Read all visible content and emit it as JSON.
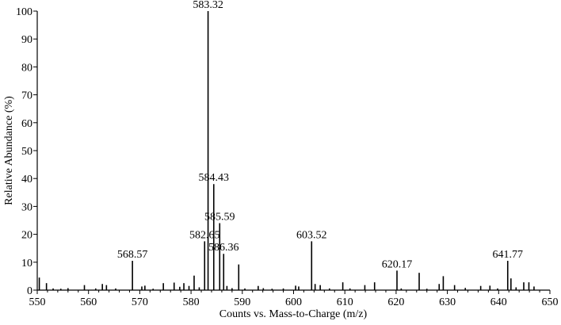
{
  "chart_data": {
    "type": "bar",
    "xlabel": "Counts vs. Mass-to-Charge (m/z)",
    "ylabel": "Relative  Abundance (%)",
    "xlim": [
      550,
      650
    ],
    "ylim": [
      0,
      100
    ],
    "x_ticks": [
      "550",
      "560",
      "570",
      "580",
      "590",
      "600",
      "610",
      "620",
      "630",
      "640",
      "650"
    ],
    "y_ticks": [
      "0",
      "10",
      "20",
      "30",
      "40",
      "50",
      "60",
      "70",
      "80",
      "90",
      "100"
    ],
    "peaks": [
      {
        "mz": 550.4,
        "value": 4.5
      },
      {
        "mz": 551.8,
        "value": 2.5
      },
      {
        "mz": 553.1,
        "value": 0.6
      },
      {
        "mz": 554.6,
        "value": 0.5
      },
      {
        "mz": 556.0,
        "value": 0.7
      },
      {
        "mz": 559.2,
        "value": 1.8
      },
      {
        "mz": 561.4,
        "value": 0.6
      },
      {
        "mz": 562.7,
        "value": 2.2
      },
      {
        "mz": 563.5,
        "value": 1.8
      },
      {
        "mz": 565.3,
        "value": 0.6
      },
      {
        "mz": 568.57,
        "value": 10.5,
        "label": "568.57"
      },
      {
        "mz": 570.4,
        "value": 1.3
      },
      {
        "mz": 571.0,
        "value": 1.6
      },
      {
        "mz": 572.6,
        "value": 0.5
      },
      {
        "mz": 574.6,
        "value": 2.5
      },
      {
        "mz": 576.7,
        "value": 2.7
      },
      {
        "mz": 577.8,
        "value": 1.2
      },
      {
        "mz": 578.6,
        "value": 2.5
      },
      {
        "mz": 579.6,
        "value": 1.5
      },
      {
        "mz": 580.6,
        "value": 5.2
      },
      {
        "mz": 581.6,
        "value": 1.0
      },
      {
        "mz": 582.65,
        "value": 17.5,
        "label": "582.65"
      },
      {
        "mz": 583.32,
        "value": 100,
        "label": "583.32"
      },
      {
        "mz": 584.43,
        "value": 38,
        "label": "584.43"
      },
      {
        "mz": 585.59,
        "value": 24,
        "label": "585.59"
      },
      {
        "mz": 586.36,
        "value": 13,
        "label": "586.36"
      },
      {
        "mz": 587.0,
        "value": 1.5
      },
      {
        "mz": 588.0,
        "value": 0.7
      },
      {
        "mz": 589.3,
        "value": 9.2
      },
      {
        "mz": 590.5,
        "value": 0.6
      },
      {
        "mz": 593.1,
        "value": 1.5
      },
      {
        "mz": 594.1,
        "value": 0.7
      },
      {
        "mz": 595.8,
        "value": 0.5
      },
      {
        "mz": 598.0,
        "value": 0.6
      },
      {
        "mz": 600.4,
        "value": 1.6
      },
      {
        "mz": 601.0,
        "value": 1.3
      },
      {
        "mz": 603.52,
        "value": 17.5,
        "label": "603.52"
      },
      {
        "mz": 604.2,
        "value": 2.2
      },
      {
        "mz": 605.2,
        "value": 1.8
      },
      {
        "mz": 607.0,
        "value": 0.6
      },
      {
        "mz": 609.6,
        "value": 2.8
      },
      {
        "mz": 611.0,
        "value": 0.6
      },
      {
        "mz": 613.9,
        "value": 1.8
      },
      {
        "mz": 615.8,
        "value": 2.8
      },
      {
        "mz": 620.17,
        "value": 7.0,
        "label": "620.17"
      },
      {
        "mz": 621.0,
        "value": 0.6
      },
      {
        "mz": 624.5,
        "value": 6.2
      },
      {
        "mz": 626.0,
        "value": 0.5
      },
      {
        "mz": 628.4,
        "value": 2.2
      },
      {
        "mz": 629.2,
        "value": 5.0
      },
      {
        "mz": 631.4,
        "value": 1.8
      },
      {
        "mz": 633.5,
        "value": 0.8
      },
      {
        "mz": 636.5,
        "value": 1.5
      },
      {
        "mz": 638.3,
        "value": 1.6
      },
      {
        "mz": 639.8,
        "value": 0.6
      },
      {
        "mz": 641.77,
        "value": 10.5,
        "label": "641.77"
      },
      {
        "mz": 642.4,
        "value": 4.2
      },
      {
        "mz": 643.4,
        "value": 1.0
      },
      {
        "mz": 644.9,
        "value": 2.8
      },
      {
        "mz": 645.9,
        "value": 2.8
      },
      {
        "mz": 646.9,
        "value": 1.3
      }
    ],
    "grid": false,
    "legend": "none"
  }
}
